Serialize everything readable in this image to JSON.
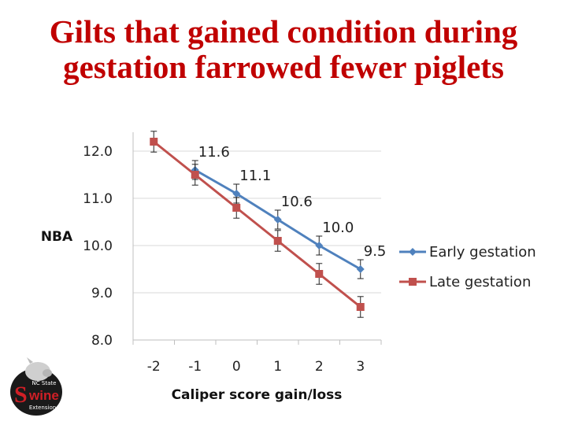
{
  "slide": {
    "title_line1": "Gilts that gained condition during",
    "title_line2": "gestation farrowed fewer piglets"
  },
  "logo": {
    "line1": "NC State",
    "line2": "Swine",
    "line3": "Extension"
  },
  "colors": {
    "title": "#c00000",
    "early": "#4f81bd",
    "late": "#c0504d",
    "grid": "#d9d9d9",
    "axis": "#bfbfbf"
  },
  "chart_data": {
    "type": "line",
    "title": "",
    "xlabel": "Caliper score gain/loss",
    "ylabel": "NBA",
    "ylim": [
      8.0,
      12.0
    ],
    "xlim": [
      -2.5,
      3.5
    ],
    "y_ticks": [
      "12.0",
      "11.0",
      "10.0",
      "9.0",
      "8.0"
    ],
    "x_ticks": [
      "-2",
      "-1",
      "0",
      "1",
      "2",
      "3"
    ],
    "legend_position": "right",
    "series": [
      {
        "name": "Early gestation",
        "color": "#4f81bd",
        "marker": "diamond",
        "x": [
          -1,
          0,
          1,
          2,
          3
        ],
        "values": [
          11.6,
          11.1,
          10.55,
          10.0,
          9.5
        ],
        "errors": [
          0.2,
          0.2,
          0.2,
          0.2,
          0.2
        ],
        "data_labels": [
          "11.6",
          "11.1",
          "10.6",
          "10.0",
          "9.5"
        ]
      },
      {
        "name": "Late gestation",
        "color": "#c0504d",
        "marker": "square",
        "x": [
          -2,
          -1,
          0,
          1,
          2,
          3
        ],
        "values": [
          12.2,
          11.5,
          10.8,
          10.1,
          9.4,
          8.7
        ],
        "errors": [
          0.22,
          0.22,
          0.22,
          0.22,
          0.22,
          0.22
        ],
        "data_labels": []
      }
    ]
  }
}
